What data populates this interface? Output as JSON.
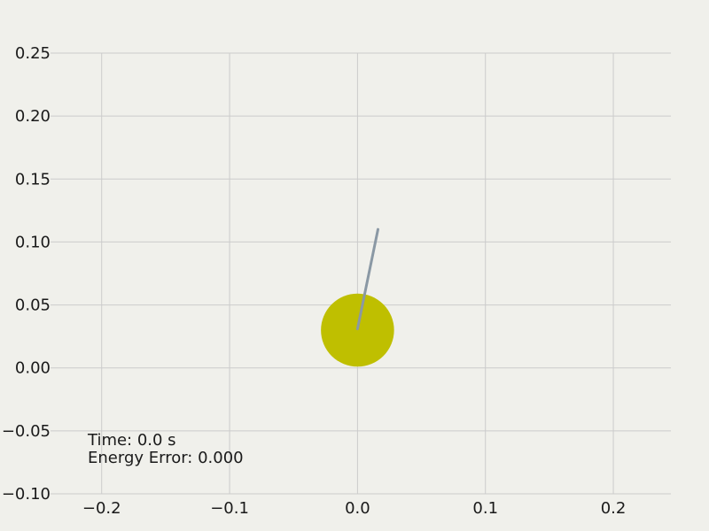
{
  "chart_data": {
    "type": "scatter",
    "title": "",
    "xlabel": "",
    "ylabel": "",
    "xlim": [
      -0.24,
      0.245
    ],
    "ylim": [
      -0.1,
      0.25
    ],
    "grid": true,
    "x_ticks": [
      -0.2,
      -0.1,
      0.0,
      0.1,
      0.2
    ],
    "x_tick_labels": [
      "−0.2",
      "−0.1",
      "0.0",
      "0.1",
      "0.2"
    ],
    "y_ticks": [
      -0.1,
      -0.05,
      0.0,
      0.05,
      0.1,
      0.15,
      0.2,
      0.25
    ],
    "y_tick_labels": [
      "−0.10",
      "−0.05",
      "0.00",
      "0.05",
      "0.10",
      "0.15",
      "0.20",
      "0.25"
    ],
    "body": {
      "x": 0.0,
      "y": 0.03,
      "radius": 0.029,
      "color": "#bfbf00"
    },
    "rod": {
      "x0": 0.0,
      "y0": 0.031,
      "x1": 0.016,
      "y1": 0.11,
      "color": "#8a98a4"
    },
    "grid_color": "#cbcbcb",
    "background_color": "#f0f0eb"
  },
  "annotations": {
    "time_label": "Time: 0.0 s",
    "energy_label": "Energy Error: 0.000"
  }
}
